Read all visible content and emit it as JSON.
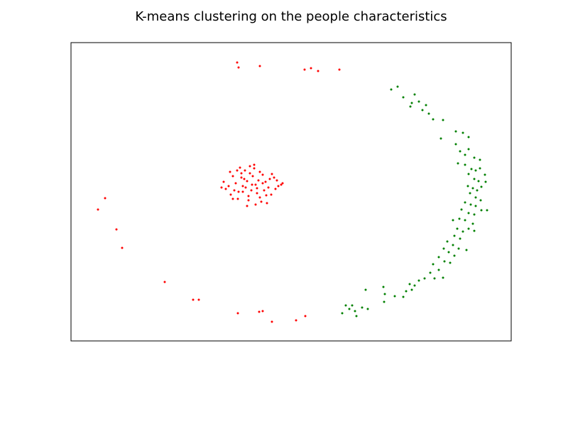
{
  "chart_data": {
    "type": "scatter",
    "title": "K-means clustering on the people characteristics",
    "xlim": [
      0,
      620
    ],
    "ylim": [
      0,
      420
    ],
    "marker_size": 1.5,
    "series": [
      {
        "color": "#ff0000",
        "x": [
          234,
          236,
          266,
          329,
          338,
          348,
          378,
          48,
          38,
          64,
          72,
          132,
          172,
          180,
          235,
          265,
          270,
          283,
          317,
          330,
          255,
          248,
          262,
          240,
          270,
          230,
          280,
          222,
          288,
          215,
          296,
          245,
          258,
          266,
          235,
          275,
          250,
          242,
          268,
          228,
          283,
          252,
          238,
          260,
          272,
          225,
          290,
          246,
          256,
          264,
          232,
          278,
          218,
          292,
          250,
          240,
          262,
          270,
          244,
          254,
          236,
          274,
          228,
          286,
          258,
          248,
          266,
          212,
          298,
          242,
          260,
          252,
          234,
          276,
          282,
          224
        ],
        "y": [
          392,
          385,
          387,
          382,
          384,
          380,
          382,
          201,
          185,
          157,
          131,
          83,
          58,
          58,
          39,
          41,
          42,
          27,
          29,
          35,
          220,
          225,
          215,
          230,
          222,
          212,
          228,
          218,
          214,
          224,
          220,
          240,
          243,
          238,
          200,
          205,
          198,
          210,
          196,
          232,
          235,
          246,
          244,
          192,
          212,
          206,
          226,
          216,
          232,
          226,
          222,
          216,
          214,
          218,
          204,
          236,
          208,
          234,
          228,
          212,
          210,
          224,
          200,
          230,
          248,
          190,
          202,
          216,
          222,
          218,
          220,
          236,
          240,
          194,
          206,
          238
        ]
      },
      {
        "color": "#008000",
        "x": [
          451,
          460,
          468,
          478,
          480,
          484,
          490,
          495,
          500,
          504,
          510,
          524,
          521,
          542,
          552,
          560,
          542,
          548,
          555,
          560,
          568,
          576,
          545,
          555,
          564,
          570,
          576,
          583,
          560,
          568,
          574,
          584,
          559,
          566,
          572,
          578,
          562,
          570,
          577,
          555,
          563,
          570,
          578,
          586,
          550,
          560,
          568,
          547,
          555,
          566,
          538,
          544,
          552,
          560,
          568,
          540,
          548,
          530,
          538,
          546,
          525,
          532,
          540,
          557,
          518,
          526,
          534,
          510,
          518,
          506,
          512,
          524,
          498,
          490,
          477,
          484,
          472,
          480,
          456,
          468,
          440,
          442,
          441,
          415,
          410,
          418,
          396,
          392,
          400,
          387,
          382,
          402
        ],
        "y": [
          354,
          358,
          343,
          330,
          335,
          347,
          337,
          325,
          332,
          320,
          312,
          311,
          285,
          295,
          293,
          287,
          277,
          267,
          262,
          270,
          258,
          255,
          250,
          248,
          242,
          240,
          243,
          234,
          235,
          228,
          225,
          224,
          218,
          215,
          212,
          217,
          208,
          202,
          198,
          195,
          192,
          190,
          184,
          184,
          185,
          180,
          178,
          172,
          170,
          165,
          170,
          158,
          154,
          158,
          155,
          148,
          144,
          140,
          135,
          130,
          130,
          125,
          120,
          128,
          118,
          112,
          110,
          108,
          100,
          96,
          88,
          89,
          88,
          85,
          80,
          78,
          70,
          72,
          63,
          62,
          76,
          66,
          55,
          72,
          47,
          45,
          50,
          45,
          42,
          50,
          39,
          35
        ]
      }
    ]
  }
}
